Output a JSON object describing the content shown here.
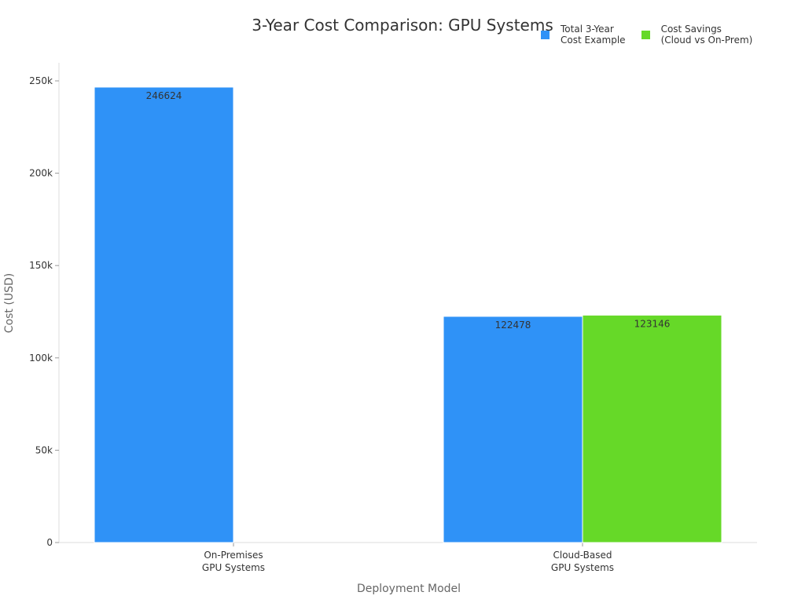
{
  "chart_data": {
    "type": "bar",
    "title": "3-Year Cost Comparison: GPU Systems",
    "xlabel": "Deployment Model",
    "ylabel": "Cost (USD)",
    "categories": [
      "On-Premises\nGPU Systems",
      "Cloud-Based\nGPU Systems"
    ],
    "series": [
      {
        "name": "Total 3-Year\nCost Example",
        "color": "#2f92f7",
        "values": [
          246624,
          122478
        ]
      },
      {
        "name": "Cost Savings\n(Cloud vs On-Prem)",
        "color": "#66d928",
        "values": [
          null,
          123146
        ]
      }
    ],
    "ylim": [
      0,
      260000
    ],
    "yticks": [
      0,
      50000,
      100000,
      150000,
      200000,
      250000
    ],
    "ytick_labels": [
      "0",
      "50k",
      "100k",
      "150k",
      "200k",
      "250k"
    ],
    "data_labels": true,
    "grid": false,
    "legend_position": "top-right"
  }
}
